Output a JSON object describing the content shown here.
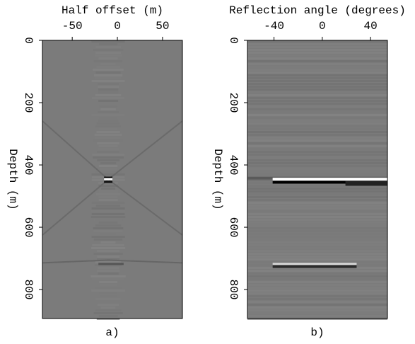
{
  "chart_data": [
    {
      "type": "image",
      "xlabel": "Half offset (m)",
      "ylabel": "Depth (m)",
      "caption": "a)",
      "xlim": [
        -83,
        72
      ],
      "xticks": [
        -50,
        0,
        50
      ],
      "ylim": [
        0,
        893
      ],
      "yticks": [
        0,
        200,
        400,
        600,
        800
      ]
    },
    {
      "type": "image",
      "xlabel": "Reflection angle (degrees)",
      "ylabel": "Depth (m)",
      "caption": "b)",
      "xlim": [
        -62,
        54
      ],
      "xticks": [
        -40,
        0,
        40
      ],
      "ylim": [
        0,
        893
      ],
      "yticks": [
        0,
        200,
        400,
        600,
        800
      ]
    }
  ]
}
